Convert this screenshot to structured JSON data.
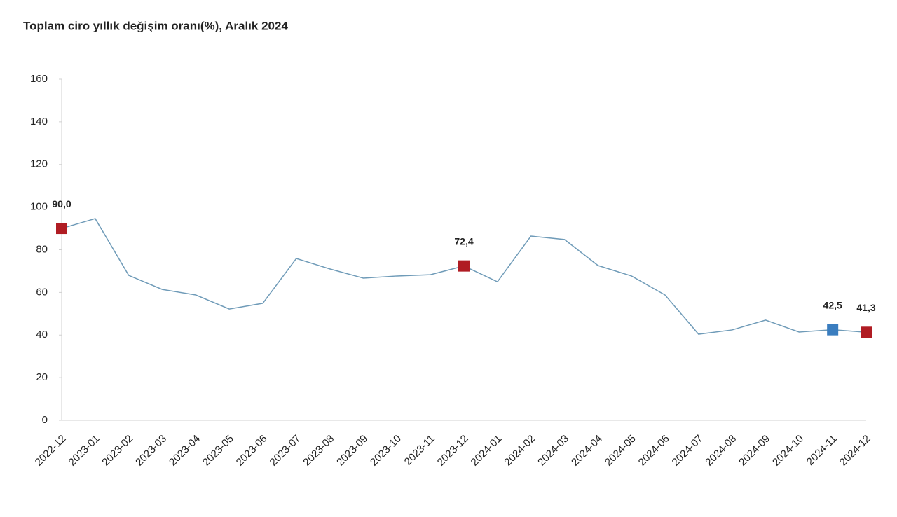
{
  "chart_data": {
    "type": "line",
    "title": "Toplam ciro yıllık değişim oranı(%), Aralık 2024",
    "categories": [
      "2022-12",
      "2023-01",
      "2023-02",
      "2023-03",
      "2023-04",
      "2023-05",
      "2023-06",
      "2023-07",
      "2023-08",
      "2023-09",
      "2023-10",
      "2023-11",
      "2023-12",
      "2024-01",
      "2024-02",
      "2024-03",
      "2024-04",
      "2024-05",
      "2024-06",
      "2024-07",
      "2024-08",
      "2024-09",
      "2024-10",
      "2024-11",
      "2024-12"
    ],
    "series": [
      {
        "color": "#6f9bb8",
        "values": [
          90.0,
          94.6,
          68,
          61.4,
          58.8,
          52.2,
          54.9,
          75.9,
          71,
          66.7,
          67.7,
          68.3,
          72.4,
          65,
          86.4,
          84.8,
          72.6,
          67.7,
          58.8,
          40.4,
          42.4,
          47,
          41.4,
          42.5,
          41.3
        ],
        "value_labels": [
          "90,0",
          null,
          null,
          null,
          null,
          null,
          null,
          null,
          null,
          null,
          null,
          null,
          "72,4",
          null,
          null,
          null,
          null,
          null,
          null,
          null,
          null,
          null,
          null,
          "42,5",
          "41,3"
        ],
        "marker_colors": [
          "#b01c23",
          null,
          null,
          null,
          null,
          null,
          null,
          null,
          null,
          null,
          null,
          null,
          "#b01c23",
          null,
          null,
          null,
          null,
          null,
          null,
          null,
          null,
          null,
          null,
          "#3a7dbf",
          "#b01c23"
        ]
      }
    ],
    "ylim": [
      0,
      160
    ],
    "yticks": [
      0,
      20,
      40,
      60,
      80,
      100,
      120,
      140,
      160
    ],
    "grid": false
  }
}
